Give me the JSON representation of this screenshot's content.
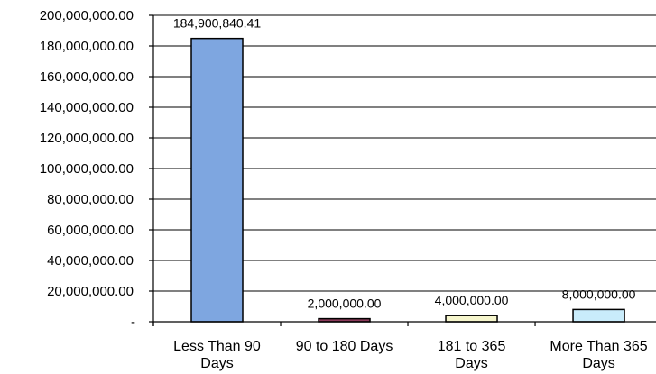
{
  "chart_data": {
    "type": "bar",
    "categories": [
      [
        "Less Than 90",
        "Days"
      ],
      [
        "90 to 180 Days"
      ],
      [
        "181 to 365",
        "Days"
      ],
      [
        "More Than 365",
        "Days"
      ]
    ],
    "values": [
      184900840.41,
      2000000.0,
      4000000.0,
      8000000.0
    ],
    "data_labels": [
      "184,900,840.41",
      "2,000,000.00",
      "4,000,000.00",
      "8,000,000.00"
    ],
    "bar_colors": [
      "#7ea6e0",
      "#8b3a5a",
      "#f5f5cc",
      "#c9ecfb"
    ],
    "ylim": [
      0,
      200000000
    ],
    "y_ticks": [
      {
        "value": 0,
        "label": "-"
      },
      {
        "value": 20000000,
        "label": "20,000,000.00"
      },
      {
        "value": 40000000,
        "label": "40,000,000.00"
      },
      {
        "value": 60000000,
        "label": "60,000,000.00"
      },
      {
        "value": 80000000,
        "label": "80,000,000.00"
      },
      {
        "value": 100000000,
        "label": "100,000,000.00"
      },
      {
        "value": 120000000,
        "label": "120,000,000.00"
      },
      {
        "value": 140000000,
        "label": "140,000,000.00"
      },
      {
        "value": 160000000,
        "label": "160,000,000.00"
      },
      {
        "value": 180000000,
        "label": "180,000,000.00"
      },
      {
        "value": 200000000,
        "label": "200,000,000.00"
      }
    ],
    "grid": true,
    "legend": "none"
  }
}
